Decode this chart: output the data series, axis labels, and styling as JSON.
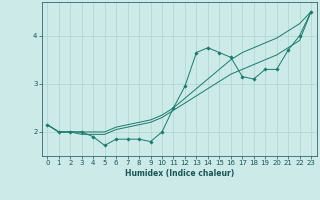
{
  "title": "",
  "xlabel": "Humidex (Indice chaleur)",
  "bg_color": "#cceae8",
  "grid_color": "#b0d4d0",
  "line_color": "#1a7a6a",
  "xlim": [
    -0.5,
    23.5
  ],
  "ylim": [
    1.5,
    4.7
  ],
  "yticks": [
    2,
    3,
    4
  ],
  "xticks": [
    0,
    1,
    2,
    3,
    4,
    5,
    6,
    7,
    8,
    9,
    10,
    11,
    12,
    13,
    14,
    15,
    16,
    17,
    18,
    19,
    20,
    21,
    22,
    23
  ],
  "line1_x": [
    0,
    1,
    2,
    3,
    4,
    5,
    6,
    7,
    8,
    9,
    10,
    11,
    12,
    13,
    14,
    15,
    16,
    17,
    18,
    19,
    20,
    21,
    22,
    23
  ],
  "line1_y": [
    2.15,
    2.0,
    2.0,
    2.0,
    1.9,
    1.72,
    1.85,
    1.85,
    1.85,
    1.8,
    2.0,
    2.5,
    2.95,
    3.65,
    3.75,
    3.65,
    3.55,
    3.15,
    3.1,
    3.3,
    3.3,
    3.7,
    4.0,
    4.5
  ],
  "line2_x": [
    0,
    1,
    2,
    3,
    4,
    5,
    6,
    7,
    8,
    9,
    10,
    11,
    12,
    13,
    14,
    15,
    16,
    17,
    18,
    19,
    20,
    21,
    22,
    23
  ],
  "line2_y": [
    2.15,
    2.0,
    2.0,
    1.95,
    1.95,
    1.95,
    2.05,
    2.1,
    2.15,
    2.2,
    2.3,
    2.45,
    2.6,
    2.75,
    2.9,
    3.05,
    3.2,
    3.3,
    3.4,
    3.5,
    3.6,
    3.75,
    3.9,
    4.5
  ],
  "line3_x": [
    0,
    1,
    2,
    3,
    4,
    5,
    6,
    7,
    8,
    9,
    10,
    11,
    12,
    13,
    14,
    15,
    16,
    17,
    18,
    19,
    20,
    21,
    22,
    23
  ],
  "line3_y": [
    2.15,
    2.0,
    2.0,
    2.0,
    2.0,
    2.0,
    2.1,
    2.15,
    2.2,
    2.25,
    2.35,
    2.5,
    2.7,
    2.9,
    3.1,
    3.3,
    3.5,
    3.65,
    3.75,
    3.85,
    3.95,
    4.1,
    4.25,
    4.5
  ]
}
